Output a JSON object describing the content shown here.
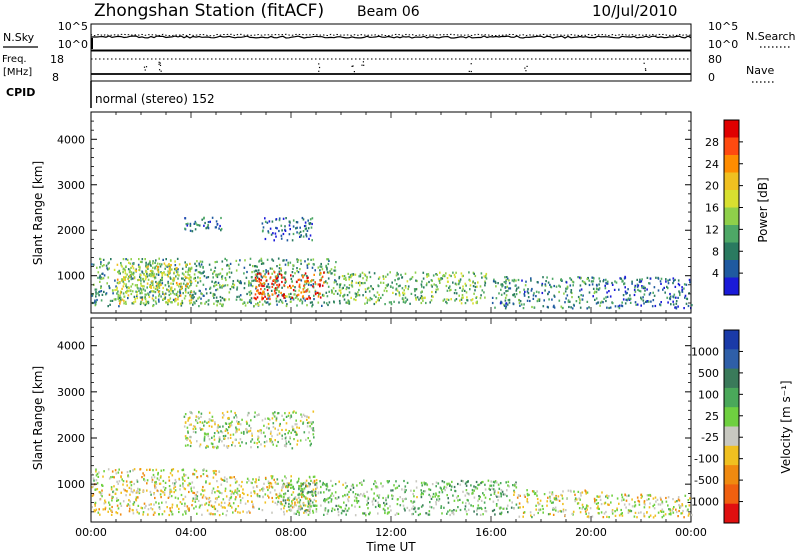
{
  "header": {
    "station": "Zhongshan Station (fitACF)",
    "beam": "Beam 06",
    "date": "10/Jul/2010"
  },
  "noise_panel": {
    "left_label": "N.Sky",
    "right_label": "N.Search",
    "left_ticks": [
      "10^5",
      "10^0"
    ],
    "right_ticks": [
      "10^5",
      "10^0"
    ]
  },
  "freq_panel": {
    "left_label_1": "Freq.",
    "left_label_2": "[MHz]",
    "right_label": "Nave",
    "left_ticks": [
      "18",
      "8"
    ],
    "right_ticks": [
      "80",
      "0"
    ]
  },
  "cpid": {
    "label": "CPID",
    "value": "normal (stereo) 152"
  },
  "power_panel": {
    "ylabel": "Slant Range [km]",
    "yticks": [
      "4000",
      "3000",
      "2000",
      "1000"
    ],
    "colorbar_label": "Power [dB]",
    "colorbar_ticks": [
      "28",
      "24",
      "20",
      "16",
      "12",
      "8",
      "4"
    ],
    "colorbar_colors": [
      "#e00000",
      "#ff4a10",
      "#ff8c00",
      "#f0c020",
      "#d8e030",
      "#8fd04a",
      "#4ea866",
      "#2a7a60",
      "#1f5aa0",
      "#1a1ad8"
    ]
  },
  "velocity_panel": {
    "ylabel": "Slant Range [km]",
    "yticks": [
      "4000",
      "3000",
      "2000",
      "1000"
    ],
    "colorbar_label": "Velocity [m s⁻¹]",
    "colorbar_ticks": [
      "1000",
      "500",
      "100",
      "25",
      "-25",
      "-100",
      "-500",
      "-1000"
    ],
    "colorbar_colors": [
      "#1a3aa8",
      "#2f5fa8",
      "#3a7a5a",
      "#4aa85a",
      "#6fd040",
      "#c8c8c0",
      "#f0c020",
      "#f08a10",
      "#f06010",
      "#e01010"
    ]
  },
  "xaxis": {
    "label": "Time UT",
    "ticks": [
      "00:00",
      "04:00",
      "08:00",
      "12:00",
      "16:00",
      "20:00",
      "00:00"
    ]
  },
  "chart_data": {
    "type": "heatmap",
    "title": "Zhongshan Station (fitACF) Beam 06",
    "date": "10/Jul/2010",
    "xlabel": "Time UT",
    "ylabel": "Slant Range [km]",
    "xlim": [
      "00:00",
      "24:00"
    ],
    "ylim": [
      180,
      4600
    ],
    "panels": [
      {
        "name": "Power",
        "colorbar_label": "Power [dB]",
        "color_range": [
          0,
          30
        ],
        "echo_regions": [
          {
            "t_start": 0.0,
            "t_end": 9.8,
            "range_min": 350,
            "range_max": 1400,
            "value": 10
          },
          {
            "t_start": 6.5,
            "t_end": 9.3,
            "range_min": 500,
            "range_max": 1100,
            "value": 26
          },
          {
            "t_start": 1.0,
            "t_end": 4.0,
            "range_min": 400,
            "range_max": 1300,
            "value": 16
          },
          {
            "t_start": 3.7,
            "t_end": 5.3,
            "range_min": 2000,
            "range_max": 2300,
            "value": 6
          },
          {
            "t_start": 6.8,
            "t_end": 8.9,
            "range_min": 1800,
            "range_max": 2300,
            "value": 6
          },
          {
            "t_start": 9.8,
            "t_end": 15.8,
            "range_min": 400,
            "range_max": 1100,
            "value": 12
          },
          {
            "t_start": 16.0,
            "t_end": 20.5,
            "range_min": 300,
            "range_max": 1000,
            "value": 8
          },
          {
            "t_start": 20.5,
            "t_end": 24.0,
            "range_min": 300,
            "range_max": 1000,
            "value": 6
          }
        ]
      },
      {
        "name": "Velocity",
        "colorbar_label": "Velocity [m s⁻¹]",
        "color_range": [
          -1000,
          1000
        ],
        "echo_regions": [
          {
            "t_start": 0.0,
            "t_end": 5.5,
            "range_min": 350,
            "range_max": 1350,
            "value": -150
          },
          {
            "t_start": 3.7,
            "t_end": 8.9,
            "range_min": 1800,
            "range_max": 2600,
            "value": 0
          },
          {
            "t_start": 5.5,
            "t_end": 9.0,
            "range_min": 400,
            "range_max": 1200,
            "value": -150
          },
          {
            "t_start": 7.5,
            "t_end": 17.0,
            "range_min": 350,
            "range_max": 1100,
            "value": 150
          },
          {
            "t_start": 17.0,
            "t_end": 20.5,
            "range_min": 300,
            "range_max": 900,
            "value": -100
          },
          {
            "t_start": 20.5,
            "t_end": 24.0,
            "range_min": 300,
            "range_max": 800,
            "value": -150
          }
        ]
      }
    ]
  }
}
